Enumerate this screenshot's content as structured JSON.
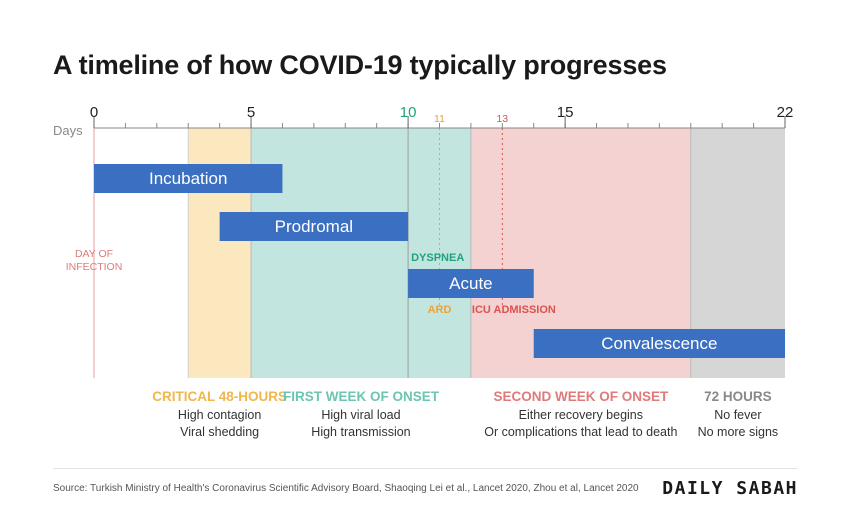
{
  "title": "A timeline of how COVID-19 typically progresses",
  "chart_data": {
    "type": "timeline",
    "axis_label": "Days",
    "xlim": [
      0,
      22
    ],
    "major_ticks": [
      0,
      5,
      10,
      15,
      22
    ],
    "minor_tick_step": 1,
    "marker_ticks": [
      {
        "value": 11,
        "label": "11",
        "color": "#e8a33c"
      },
      {
        "value": 13,
        "label": "13",
        "color": "#d9534f"
      }
    ],
    "colors": {
      "bar": "#3a6fc1",
      "critical": "#fce8be",
      "first_week": "#c2e6df",
      "second_week": "#f4d2d2",
      "final": "#d6d6d6",
      "green": "#1fa37c",
      "orange": "#e8a33c",
      "red": "#d9534f"
    },
    "periods": [
      {
        "key": "critical",
        "start": 3,
        "end": 5,
        "header": "CRITICAL 48-HOURS",
        "line1": "High contagion",
        "line2": "Viral shedding",
        "header_color": "#f0b64a"
      },
      {
        "key": "first_week",
        "start": 5,
        "end": 12,
        "header": "FIRST WEEK OF ONSET",
        "line1": "High viral load",
        "line2": "High transmission",
        "header_color": "#6cc4b3"
      },
      {
        "key": "second_week",
        "start": 12,
        "end": 19,
        "header": "SECOND WEEK OF ONSET",
        "line1": "Either recovery begins",
        "line2": "Or complications that lead to death",
        "header_color": "#e07a7a"
      },
      {
        "key": "final",
        "start": 19,
        "end": 22,
        "header": "72 HOURS",
        "line1": "No fever",
        "line2": "No more signs",
        "header_color": "#888888"
      }
    ],
    "phases": [
      {
        "name": "Incubation",
        "start": 0,
        "end": 6
      },
      {
        "name": "Prodromal",
        "start": 4,
        "end": 10
      },
      {
        "name": "Acute",
        "start": 10,
        "end": 14
      },
      {
        "name": "Convalescence",
        "start": 14,
        "end": 22
      }
    ],
    "annotations": [
      {
        "text": "DAY OF",
        "text2": "INFECTION",
        "day": 0,
        "color": "#e07a7a"
      },
      {
        "text": "DYSPNEA",
        "day": 10,
        "color": "#1fa37c"
      },
      {
        "text": "ARD",
        "day": 11,
        "color": "#e8a33c"
      },
      {
        "text": "ICU ADMISSION",
        "day": 13,
        "color": "#d9534f"
      }
    ]
  },
  "footer": {
    "source": "Source: Turkish Ministry of Health's Coronavirus Scientific Advisory Board, Shaoqing Lei et al., Lancet 2020, Zhou et al, Lancet 2020",
    "brand": "DAILY SABAH"
  }
}
